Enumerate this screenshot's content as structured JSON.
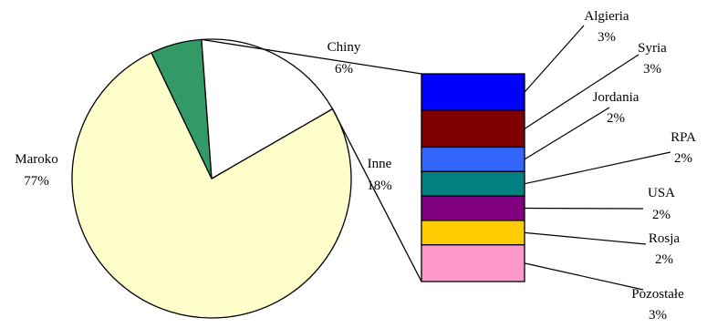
{
  "chart_data": {
    "type": "pie",
    "title": "",
    "main": {
      "slices": [
        {
          "name": "Maroko",
          "value": 77,
          "label": "77%",
          "color": "#FFFFCC"
        },
        {
          "name": "Chiny",
          "value": 6,
          "label": "6%",
          "color": "#339966"
        },
        {
          "name": "Inne",
          "value": 18,
          "label": "18%",
          "color": "#FFFFFF"
        }
      ]
    },
    "breakdown": {
      "of": "Inne",
      "type": "stacked-bar",
      "items": [
        {
          "name": "Algieria",
          "value": 3,
          "label": "3%",
          "color": "#0000FF"
        },
        {
          "name": "Syria",
          "value": 3,
          "label": "3%",
          "color": "#800000"
        },
        {
          "name": "Jordania",
          "value": 2,
          "label": "2%",
          "color": "#3366FF"
        },
        {
          "name": "RPA",
          "value": 2,
          "label": "2%",
          "color": "#008080"
        },
        {
          "name": "USA",
          "value": 2,
          "label": "2%",
          "color": "#800080"
        },
        {
          "name": "Rosja",
          "value": 2,
          "label": "2%",
          "color": "#FFCC00"
        },
        {
          "name": "Pozostałe",
          "value": 3,
          "label": "3%",
          "color": "#FF99CC"
        }
      ]
    }
  }
}
